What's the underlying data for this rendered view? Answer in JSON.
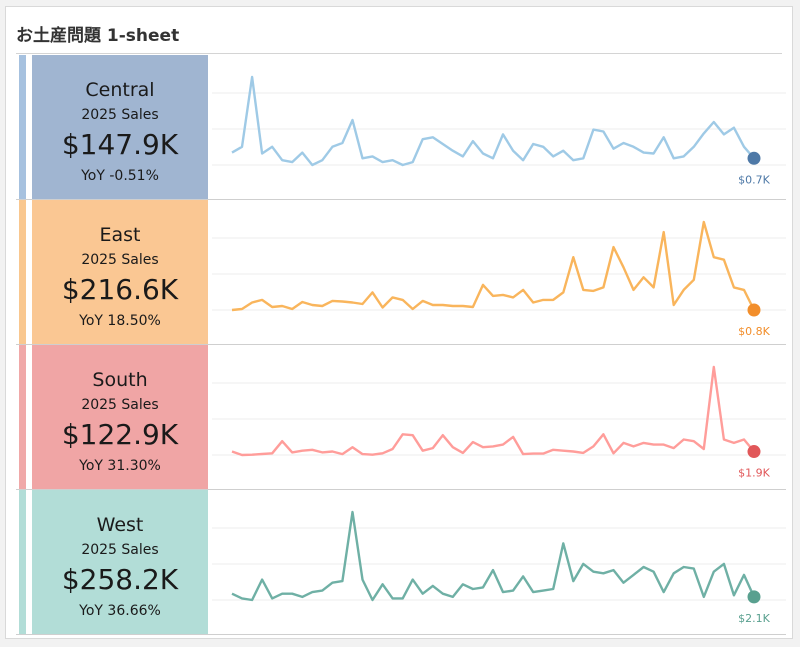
{
  "sheet_title": "お土産問題 1-sheet",
  "kpi_sub_label": "2025 Sales",
  "chart_data": {
    "type": "line",
    "title": "お土産問題 1-sheet",
    "subtitle": "2025 Sales",
    "x": [
      1,
      2,
      3,
      4,
      5,
      6,
      7,
      8,
      9,
      10,
      11,
      12,
      13,
      14,
      15,
      16,
      17,
      18,
      19,
      20,
      21,
      22,
      23,
      24,
      25,
      26,
      27,
      28,
      29,
      30,
      31,
      32,
      33,
      34,
      35,
      36,
      37,
      38,
      39,
      40,
      41,
      42,
      43,
      44,
      45,
      46,
      47,
      48,
      49,
      50,
      51,
      52,
      53
    ],
    "series": [
      {
        "name": "Central",
        "total": "$147.9K",
        "yoy": "YoY -0.51%",
        "end_label": "$0.7K",
        "line_color": "#9fcae6",
        "dot_color": "#4e79a7",
        "panel_color": "#a0b5d1",
        "stripe_color": "#a6c1df",
        "label_color": "#4e79a7",
        "values": [
          0.76,
          0.82,
          1.55,
          0.75,
          0.82,
          0.68,
          0.66,
          0.76,
          0.63,
          0.68,
          0.82,
          0.86,
          1.1,
          0.7,
          0.72,
          0.66,
          0.68,
          0.63,
          0.66,
          0.9,
          0.92,
          0.85,
          0.78,
          0.72,
          0.88,
          0.75,
          0.7,
          0.95,
          0.78,
          0.68,
          0.85,
          0.82,
          0.72,
          0.78,
          0.68,
          0.7,
          1.0,
          0.98,
          0.8,
          0.86,
          0.82,
          0.76,
          0.75,
          0.92,
          0.7,
          0.72,
          0.82,
          0.96,
          1.08,
          0.95,
          1.02,
          0.82,
          0.7
        ]
      },
      {
        "name": "East",
        "total": "$216.6K",
        "yoy": "YoY 18.50%",
        "end_label": "$0.8K",
        "line_color": "#f9b55c",
        "dot_color": "#f28e2b",
        "panel_color": "#fac793",
        "stripe_color": "#f9c78f",
        "label_color": "#f28e2b",
        "values": [
          0.8,
          0.82,
          0.95,
          1.0,
          0.86,
          0.88,
          0.82,
          0.96,
          0.9,
          0.88,
          0.98,
          0.97,
          0.95,
          0.92,
          1.15,
          0.85,
          1.05,
          1.0,
          0.82,
          0.98,
          0.9,
          0.9,
          0.88,
          0.88,
          0.86,
          1.3,
          1.08,
          1.1,
          1.05,
          1.2,
          0.95,
          1.0,
          1.0,
          1.15,
          1.85,
          1.2,
          1.18,
          1.25,
          2.05,
          1.65,
          1.2,
          1.45,
          1.25,
          2.35,
          0.9,
          1.2,
          1.4,
          2.55,
          1.85,
          1.8,
          1.25,
          1.2,
          0.8
        ]
      },
      {
        "name": "South",
        "total": "$122.9K",
        "yoy": "YoY 31.30%",
        "end_label": "$1.9K",
        "line_color": "#ff9d9a",
        "dot_color": "#e15759",
        "panel_color": "#f0a5a5",
        "stripe_color": "#f0a8a8",
        "label_color": "#e15759",
        "values": [
          1.9,
          1.7,
          1.72,
          1.76,
          1.8,
          2.5,
          1.85,
          1.95,
          2.0,
          1.85,
          1.9,
          1.75,
          2.15,
          1.75,
          1.72,
          1.8,
          2.05,
          2.9,
          2.85,
          1.95,
          2.1,
          2.85,
          2.15,
          1.82,
          2.45,
          2.15,
          2.2,
          2.3,
          2.75,
          1.75,
          1.78,
          1.78,
          2.0,
          1.95,
          1.9,
          1.82,
          2.2,
          2.9,
          1.8,
          2.4,
          2.2,
          2.4,
          2.3,
          2.3,
          2.1,
          2.6,
          2.5,
          2.05,
          6.8,
          2.6,
          2.4,
          2.6,
          1.9
        ]
      },
      {
        "name": "West",
        "total": "$258.2K",
        "yoy": "YoY 36.66%",
        "end_label": "$2.1K",
        "line_color": "#6fb0a5",
        "dot_color": "#59a08f",
        "panel_color": "#b2ddd7",
        "stripe_color": "#b2ddd7",
        "label_color": "#59a08f",
        "values": [
          2.2,
          2.05,
          2.0,
          2.65,
          2.05,
          2.2,
          2.2,
          2.1,
          2.25,
          2.3,
          2.55,
          2.6,
          4.8,
          2.65,
          2.0,
          2.5,
          2.05,
          2.05,
          2.65,
          2.2,
          2.45,
          2.2,
          2.1,
          2.5,
          2.35,
          2.4,
          2.95,
          2.25,
          2.3,
          2.75,
          2.25,
          2.3,
          2.35,
          3.8,
          2.6,
          3.15,
          2.9,
          2.85,
          2.95,
          2.55,
          2.8,
          3.05,
          2.9,
          2.25,
          2.85,
          3.05,
          3.0,
          2.1,
          2.9,
          3.15,
          2.15,
          2.8,
          2.1
        ]
      }
    ]
  }
}
